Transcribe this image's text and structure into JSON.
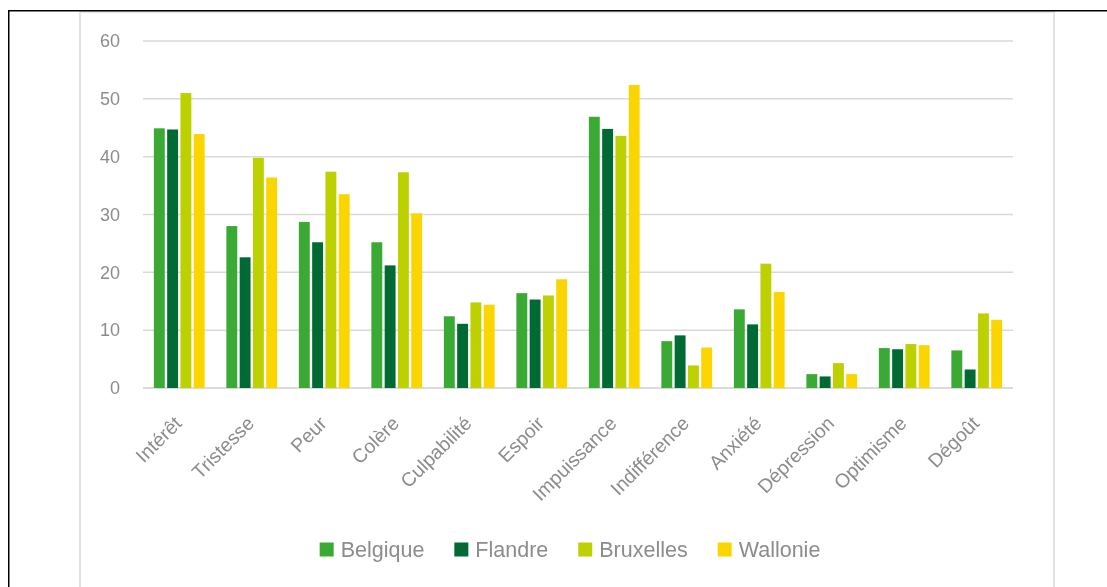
{
  "chart_data": {
    "type": "bar",
    "categories": [
      "Intérêt",
      "Tristesse",
      "Peur",
      "Colère",
      "Culpabilité",
      "Espoir",
      "Impuissance",
      "Indifférence",
      "Anxiété",
      "Dépression",
      "Optimisme",
      "Dégoût"
    ],
    "series": [
      {
        "name": "Belgique",
        "color": "#3aaa35",
        "values": [
          44.9,
          28.0,
          28.7,
          25.2,
          12.4,
          16.4,
          46.9,
          8.1,
          13.6,
          2.4,
          6.9,
          6.5
        ]
      },
      {
        "name": "Flandre",
        "color": "#006a35",
        "values": [
          44.7,
          22.6,
          25.2,
          21.2,
          11.1,
          15.3,
          44.8,
          9.1,
          11.0,
          2.0,
          6.7,
          3.2
        ]
      },
      {
        "name": "Bruxelles",
        "color": "#bdd000",
        "values": [
          51.0,
          39.8,
          37.4,
          37.3,
          14.8,
          16.0,
          43.6,
          3.9,
          21.5,
          4.3,
          7.6,
          12.9
        ]
      },
      {
        "name": "Wallonie",
        "color": "#fad500",
        "values": [
          43.9,
          36.4,
          33.5,
          30.2,
          14.4,
          18.8,
          52.4,
          7.0,
          16.6,
          2.4,
          7.4,
          11.8
        ]
      }
    ],
    "ylim": [
      0,
      60
    ],
    "yticks": [
      0,
      10,
      20,
      30,
      40,
      50,
      60
    ],
    "grid": "y",
    "legend": "bottom"
  }
}
